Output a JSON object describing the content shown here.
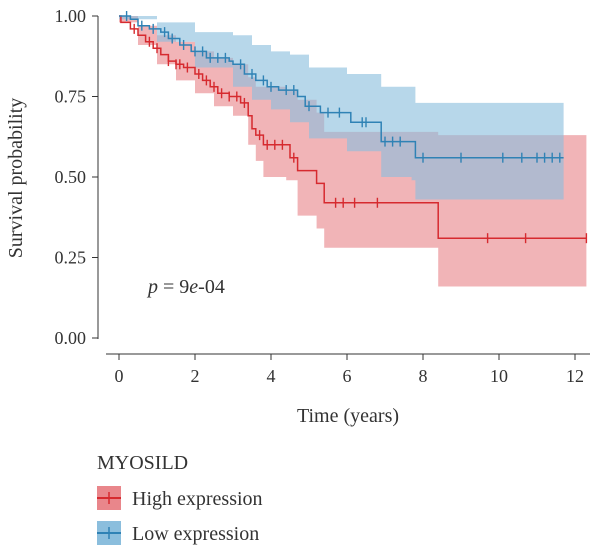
{
  "chart_data": {
    "type": "line",
    "subtype": "kaplan-meier survival curve with confidence bands",
    "xlabel": "Time (years)",
    "ylabel": "Survival probability",
    "xlim": [
      -0.3,
      12.3
    ],
    "ylim": [
      0.0,
      1.0
    ],
    "x_ticks": [
      0,
      2,
      4,
      6,
      8,
      10,
      12
    ],
    "x_tick_labels": [
      "0",
      "2",
      "4",
      "6",
      "8",
      "10",
      "12"
    ],
    "y_ticks": [
      0.0,
      0.25,
      0.5,
      0.75,
      1.0
    ],
    "y_tick_labels": [
      "0.00",
      "0.25",
      "0.50",
      "0.75",
      "1.00"
    ],
    "grid": false,
    "annotation": {
      "p_label": "p",
      "eq": " = 9",
      "e_label": "e",
      "exp": "-04"
    },
    "legend": {
      "title": "MYOSILD",
      "placement": "bottom",
      "entries": [
        "High expression",
        "Low expression"
      ]
    },
    "series": [
      {
        "name": "High expression",
        "color": "#d62a2f",
        "band_color": "#e9868b",
        "steps": [
          [
            0,
            1.0
          ],
          [
            0.05,
            0.98
          ],
          [
            0.3,
            0.96
          ],
          [
            0.5,
            0.94
          ],
          [
            0.7,
            0.92
          ],
          [
            0.9,
            0.9
          ],
          [
            1.1,
            0.88
          ],
          [
            1.3,
            0.86
          ],
          [
            1.5,
            0.85
          ],
          [
            1.7,
            0.84
          ],
          [
            2.0,
            0.82
          ],
          [
            2.2,
            0.8
          ],
          [
            2.4,
            0.78
          ],
          [
            2.6,
            0.76
          ],
          [
            2.9,
            0.75
          ],
          [
            3.2,
            0.73
          ],
          [
            3.4,
            0.69
          ],
          [
            3.5,
            0.65
          ],
          [
            3.6,
            0.63
          ],
          [
            3.8,
            0.6
          ],
          [
            4.4,
            0.6
          ],
          [
            4.5,
            0.56
          ],
          [
            4.7,
            0.52
          ],
          [
            5.2,
            0.48
          ],
          [
            5.4,
            0.42
          ],
          [
            8.3,
            0.42
          ],
          [
            8.4,
            0.31
          ],
          [
            12.3,
            0.31
          ]
        ],
        "upper": [
          [
            0,
            1.0
          ],
          [
            0.5,
            0.97
          ],
          [
            1.0,
            0.94
          ],
          [
            1.5,
            0.92
          ],
          [
            2.0,
            0.89
          ],
          [
            2.5,
            0.87
          ],
          [
            3.0,
            0.85
          ],
          [
            3.4,
            0.81
          ],
          [
            3.6,
            0.78
          ],
          [
            4.4,
            0.77
          ],
          [
            4.7,
            0.74
          ],
          [
            5.2,
            0.7
          ],
          [
            5.4,
            0.64
          ],
          [
            8.3,
            0.64
          ],
          [
            8.4,
            0.63
          ],
          [
            12.3,
            0.63
          ]
        ],
        "lower": [
          [
            0,
            0.98
          ],
          [
            0.5,
            0.91
          ],
          [
            1.0,
            0.85
          ],
          [
            1.5,
            0.8
          ],
          [
            2.0,
            0.76
          ],
          [
            2.5,
            0.72
          ],
          [
            3.0,
            0.69
          ],
          [
            3.4,
            0.6
          ],
          [
            3.6,
            0.55
          ],
          [
            3.8,
            0.5
          ],
          [
            4.4,
            0.49
          ],
          [
            4.7,
            0.38
          ],
          [
            5.2,
            0.34
          ],
          [
            5.4,
            0.28
          ],
          [
            8.3,
            0.28
          ],
          [
            8.4,
            0.16
          ],
          [
            12.3,
            0.16
          ]
        ],
        "censor_x": [
          0.4,
          0.8,
          1.0,
          1.3,
          1.5,
          1.6,
          1.8,
          2.1,
          2.3,
          2.5,
          2.7,
          2.9,
          3.1,
          3.3,
          3.7,
          3.9,
          4.1,
          4.3,
          4.6,
          5.7,
          5.9,
          6.2,
          6.8,
          9.7,
          10.7,
          12.3
        ]
      },
      {
        "name": "Low expression",
        "color": "#2f82b5",
        "band_color": "#8bbedd",
        "steps": [
          [
            0,
            1.0
          ],
          [
            0.3,
            0.99
          ],
          [
            0.5,
            0.97
          ],
          [
            0.8,
            0.96
          ],
          [
            1.1,
            0.95
          ],
          [
            1.3,
            0.93
          ],
          [
            1.6,
            0.91
          ],
          [
            1.9,
            0.89
          ],
          [
            2.3,
            0.87
          ],
          [
            2.9,
            0.86
          ],
          [
            3.0,
            0.85
          ],
          [
            3.3,
            0.82
          ],
          [
            3.6,
            0.8
          ],
          [
            3.9,
            0.78
          ],
          [
            4.2,
            0.77
          ],
          [
            4.7,
            0.75
          ],
          [
            4.9,
            0.72
          ],
          [
            5.3,
            0.7
          ],
          [
            5.9,
            0.7
          ],
          [
            6.1,
            0.67
          ],
          [
            6.8,
            0.67
          ],
          [
            6.9,
            0.61
          ],
          [
            7.7,
            0.61
          ],
          [
            7.8,
            0.56
          ],
          [
            11.7,
            0.56
          ]
        ],
        "upper": [
          [
            0,
            1.0
          ],
          [
            1.0,
            0.98
          ],
          [
            2.0,
            0.95
          ],
          [
            3.0,
            0.94
          ],
          [
            3.5,
            0.91
          ],
          [
            4.0,
            0.89
          ],
          [
            4.5,
            0.88
          ],
          [
            5.0,
            0.84
          ],
          [
            6.0,
            0.82
          ],
          [
            6.9,
            0.78
          ],
          [
            7.7,
            0.78
          ],
          [
            7.8,
            0.73
          ],
          [
            11.7,
            0.73
          ]
        ],
        "lower": [
          [
            0,
            0.99
          ],
          [
            1.0,
            0.92
          ],
          [
            2.0,
            0.84
          ],
          [
            3.0,
            0.78
          ],
          [
            3.5,
            0.74
          ],
          [
            4.0,
            0.71
          ],
          [
            4.5,
            0.67
          ],
          [
            5.0,
            0.62
          ],
          [
            6.0,
            0.58
          ],
          [
            6.9,
            0.5
          ],
          [
            7.7,
            0.49
          ],
          [
            7.8,
            0.43
          ],
          [
            11.7,
            0.43
          ]
        ],
        "censor_x": [
          0.2,
          0.6,
          0.9,
          1.2,
          1.4,
          1.7,
          2.0,
          2.2,
          2.4,
          2.6,
          2.8,
          3.2,
          3.5,
          3.8,
          4.0,
          4.4,
          4.6,
          5.0,
          5.5,
          5.8,
          6.4,
          6.5,
          7.0,
          7.2,
          7.4,
          8.0,
          9.0,
          10.1,
          10.6,
          11.0,
          11.2,
          11.4,
          11.6
        ]
      }
    ]
  }
}
